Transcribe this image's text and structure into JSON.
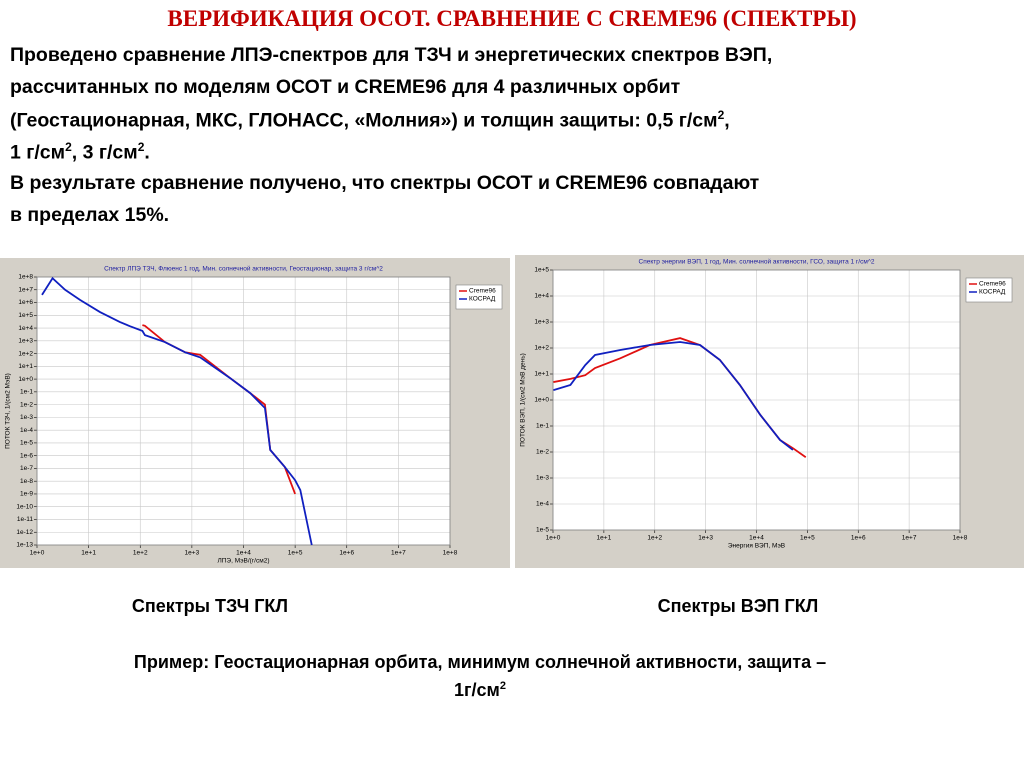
{
  "slide": {
    "title": "ВЕРИФИКАЦИЯ ОСОТ. СРАВНЕНИЕ С CREME96 (СПЕКТРЫ)",
    "body": [
      [
        "Проведено сравнение ЛПЭ-спектров для ТЗЧ и энергетических спектров ВЭП,"
      ],
      [
        "рассчитанных по моделям ОСОТ и CREME96 для 4 различных орбит"
      ],
      [
        "(Геостационарная, МКС, ГЛОНАСС, «Молния») и толщин защиты: 0,5 г/см",
        "2",
        ","
      ],
      [
        "1 г/см",
        "2",
        ", 3 г/см",
        "2",
        "."
      ],
      [
        "В результате сравнение получено, что спектры ОСОТ и CREME96 совпадают"
      ],
      [
        "в пределах 15%."
      ]
    ],
    "captions": [
      "Спектры ТЗЧ ГКЛ",
      "Спектры ВЭП ГКЛ"
    ],
    "footer": [
      [
        "Пример: Геостационарная орбита, минимум солнечной активности, защита –"
      ],
      [
        "1г/см",
        "2"
      ]
    ]
  },
  "chart_data": [
    {
      "type": "line",
      "title": "Спектр ЛПЭ ТЗЧ, Флюенс 1 год, Мин. солнечной активности, Геостационар, защита 3 г/см^2",
      "x_label": "ЛПЭ, МэВ/(г/см2)",
      "y_label": "ПОТОК ТЗЧ, 1/(см2 МэВ)",
      "log_x": true,
      "log_y": true,
      "grid": true,
      "legend": "right",
      "x": [
        1.25,
        2,
        3.5,
        6.8,
        16.6,
        40,
        63,
        110,
        123,
        300,
        740,
        1450,
        5500,
        13500,
        26000,
        33000,
        63000,
        100000,
        126000,
        210000
      ],
      "series": [
        {
          "name": "Creme96",
          "color": "#e01010",
          "values": [
            null,
            null,
            null,
            null,
            null,
            null,
            null,
            17000,
            15000,
            800,
            126,
            80,
            1.2,
            0.08,
            0.01,
            2.8e-06,
            1.3e-07,
            1e-09,
            null,
            null
          ]
        },
        {
          "name": "КОСРАД",
          "color": "#1020c0",
          "values": [
            4000000,
            80000000,
            10000000,
            1600000,
            180000,
            30000,
            14000,
            6000,
            2800,
            800,
            126,
            50,
            1.2,
            0.08,
            0.0054,
            2.8e-06,
            1.3e-07,
            1.2e-08,
            2e-09,
            1e-13
          ]
        }
      ],
      "xlim": [
        1,
        100000000
      ],
      "xticks": [
        {
          "value": 1,
          "label": "1e+0"
        },
        {
          "value": 10,
          "label": "1e+1"
        },
        {
          "value": 100,
          "label": "1e+2"
        },
        {
          "value": 1000,
          "label": "1e+3"
        },
        {
          "value": 10000,
          "label": "1e+4"
        },
        {
          "value": 100000,
          "label": "1e+5"
        },
        {
          "value": 1000000,
          "label": "1e+6"
        },
        {
          "value": 10000000,
          "label": "1e+7"
        },
        {
          "value": 100000000,
          "label": "1e+8"
        }
      ],
      "ylim": [
        1e-13,
        100000000
      ],
      "yticks": [
        {
          "value": 100000000,
          "label": "1e+8"
        },
        {
          "value": 10000000,
          "label": "1e+7"
        },
        {
          "value": 1000000,
          "label": "1e+6"
        },
        {
          "value": 100000,
          "label": "1e+5"
        },
        {
          "value": 10000,
          "label": "1e+4"
        },
        {
          "value": 1000,
          "label": "1e+3"
        },
        {
          "value": 100,
          "label": "1e+2"
        },
        {
          "value": 10,
          "label": "1e+1"
        },
        {
          "value": 1,
          "label": "1e+0"
        },
        {
          "value": 0.1,
          "label": "1e-1"
        },
        {
          "value": 0.01,
          "label": "1e-2"
        },
        {
          "value": 0.001,
          "label": "1e-3"
        },
        {
          "value": 0.0001,
          "label": "1e-4"
        },
        {
          "value": 1e-05,
          "label": "1e-5"
        },
        {
          "value": 1e-06,
          "label": "1e-6"
        },
        {
          "value": 1e-07,
          "label": "1e-7"
        },
        {
          "value": 1e-08,
          "label": "1e-8"
        },
        {
          "value": 1e-09,
          "label": "1e-9"
        },
        {
          "value": 1e-10,
          "label": "1e-10"
        },
        {
          "value": 1e-11,
          "label": "1e-11"
        },
        {
          "value": 1e-12,
          "label": "1e-12"
        },
        {
          "value": 1e-13,
          "label": "1e-13"
        }
      ]
    },
    {
      "type": "line",
      "title": "Спектр энергии ВЭП, 1 год, Мин. солнечной активности, ГСО, защита 1 г/см^2",
      "x_label": "Энергия ВЭП, МэВ",
      "y_label": "ПОТОК ВЭП, 1/(см2 МэВ день)",
      "log_x": true,
      "log_y": true,
      "grid": true,
      "legend": "right",
      "x": [
        1.02,
        2.2,
        4.3,
        6.7,
        21,
        80,
        315,
        775,
        1900,
        4700,
        12000,
        29000,
        52000,
        93000
      ],
      "series": [
        {
          "name": "Creme96",
          "color": "#e01010",
          "values": [
            4.9,
            6.5,
            9,
            17,
            40,
            130,
            240,
            130,
            35,
            3.8,
            0.26,
            0.029,
            0.014,
            0.0063
          ]
        },
        {
          "name": "КОСРАД",
          "color": "#1020c0",
          "values": [
            2.4,
            3.8,
            22,
            54,
            84,
            130,
            170,
            130,
            35,
            3.8,
            0.26,
            0.029,
            0.012,
            null
          ]
        }
      ],
      "xlim": [
        1,
        100000000
      ],
      "xticks": [
        {
          "value": 1,
          "label": "1e+0"
        },
        {
          "value": 10,
          "label": "1e+1"
        },
        {
          "value": 100,
          "label": "1e+2"
        },
        {
          "value": 1000,
          "label": "1e+3"
        },
        {
          "value": 10000,
          "label": "1e+4"
        },
        {
          "value": 100000,
          "label": "1e+5"
        },
        {
          "value": 1000000,
          "label": "1e+6"
        },
        {
          "value": 10000000,
          "label": "1e+7"
        },
        {
          "value": 100000000,
          "label": "1e+8"
        }
      ],
      "ylim": [
        1e-05,
        100000
      ],
      "yticks": [
        {
          "value": 100000,
          "label": "1e+5"
        },
        {
          "value": 10000,
          "label": "1e+4"
        },
        {
          "value": 1000,
          "label": "1e+3"
        },
        {
          "value": 100,
          "label": "1e+2"
        },
        {
          "value": 10,
          "label": "1e+1"
        },
        {
          "value": 1,
          "label": "1e+0"
        },
        {
          "value": 0.1,
          "label": "1e-1"
        },
        {
          "value": 0.01,
          "label": "1e-2"
        },
        {
          "value": 0.001,
          "label": "1e-3"
        },
        {
          "value": 0.0001,
          "label": "1e-4"
        },
        {
          "value": 1e-05,
          "label": "1e-5"
        }
      ]
    }
  ]
}
